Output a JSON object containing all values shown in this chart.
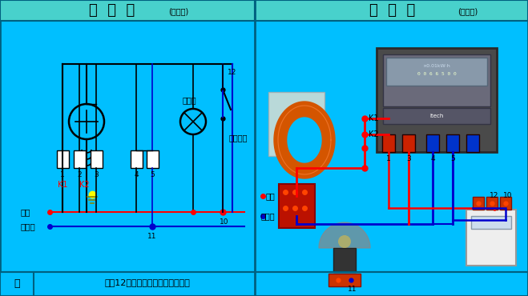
{
  "bg_color": "#00BFFF",
  "title_left": "原  理  图",
  "title_left_sub": "(提示区)",
  "title_right": "接  线  图",
  "title_right_sub": "(操作区)",
  "subtitle": "试验12：单相电度表间接安装电路",
  "bottom_label": "提",
  "wire_red": "#FF0000",
  "wire_blue": "#0000CD",
  "wire_black": "#000000",
  "wire_dark_red": "#8B0000",
  "node_red": "#FF0000",
  "node_blue": "#0000CD",
  "node_yellow": "#FFFF00",
  "title_bg": "#48D1CC",
  "panel_border": "#006080",
  "labels": {
    "phase_line": "相线",
    "neutral_line": "中性线",
    "bulb_label": "白炽灯",
    "switch_label": "单极开关",
    "k1": "K1",
    "k2": "K2",
    "num1": "1",
    "num2": "2",
    "num3": "3",
    "num4": "4",
    "num5": "5",
    "num10": "10",
    "num11": "11",
    "num12": "12"
  }
}
